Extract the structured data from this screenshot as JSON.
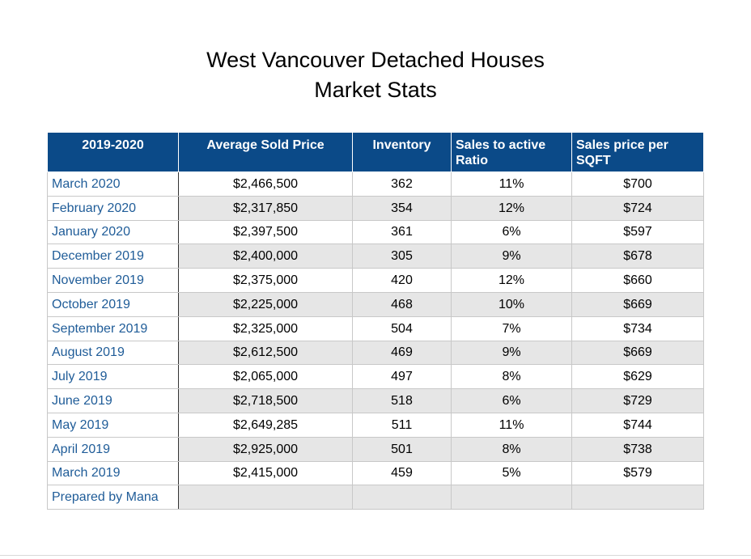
{
  "title": {
    "line1": "West Vancouver Detached Houses",
    "line2": "Market Stats"
  },
  "table": {
    "headers": [
      "2019-2020",
      "Average Sold Price",
      "Inventory",
      "Sales to active Ratio",
      "Sales price per SQFT"
    ],
    "rows": [
      [
        "March 2020",
        "$2,466,500",
        "362",
        "11%",
        "$700"
      ],
      [
        "February 2020",
        "$2,317,850",
        "354",
        "12%",
        "$724"
      ],
      [
        "January 2020",
        "$2,397,500",
        "361",
        "6%",
        "$597"
      ],
      [
        "December 2019",
        "$2,400,000",
        "305",
        "9%",
        "$678"
      ],
      [
        "November 2019",
        "$2,375,000",
        "420",
        "12%",
        "$660"
      ],
      [
        "October 2019",
        "$2,225,000",
        "468",
        "10%",
        "$669"
      ],
      [
        "September 2019",
        "$2,325,000",
        "504",
        "7%",
        "$734"
      ],
      [
        "August 2019",
        "$2,612,500",
        "469",
        "9%",
        "$669"
      ],
      [
        "July 2019",
        "$2,065,000",
        "497",
        "8%",
        "$629"
      ],
      [
        "June 2019",
        "$2,718,500",
        "518",
        "6%",
        "$729"
      ],
      [
        "May 2019",
        "$2,649,285",
        "511",
        "11%",
        "$744"
      ],
      [
        "April 2019",
        "$2,925,000",
        "501",
        "8%",
        "$738"
      ],
      [
        "March 2019",
        "$2,415,000",
        "459",
        "5%",
        "$579"
      ]
    ],
    "footer": "Prepared by Mana"
  },
  "colors": {
    "header_bg": "#0b4a88",
    "month_text": "#1f5c98",
    "alt_row_bg": "#e6e6e6"
  }
}
